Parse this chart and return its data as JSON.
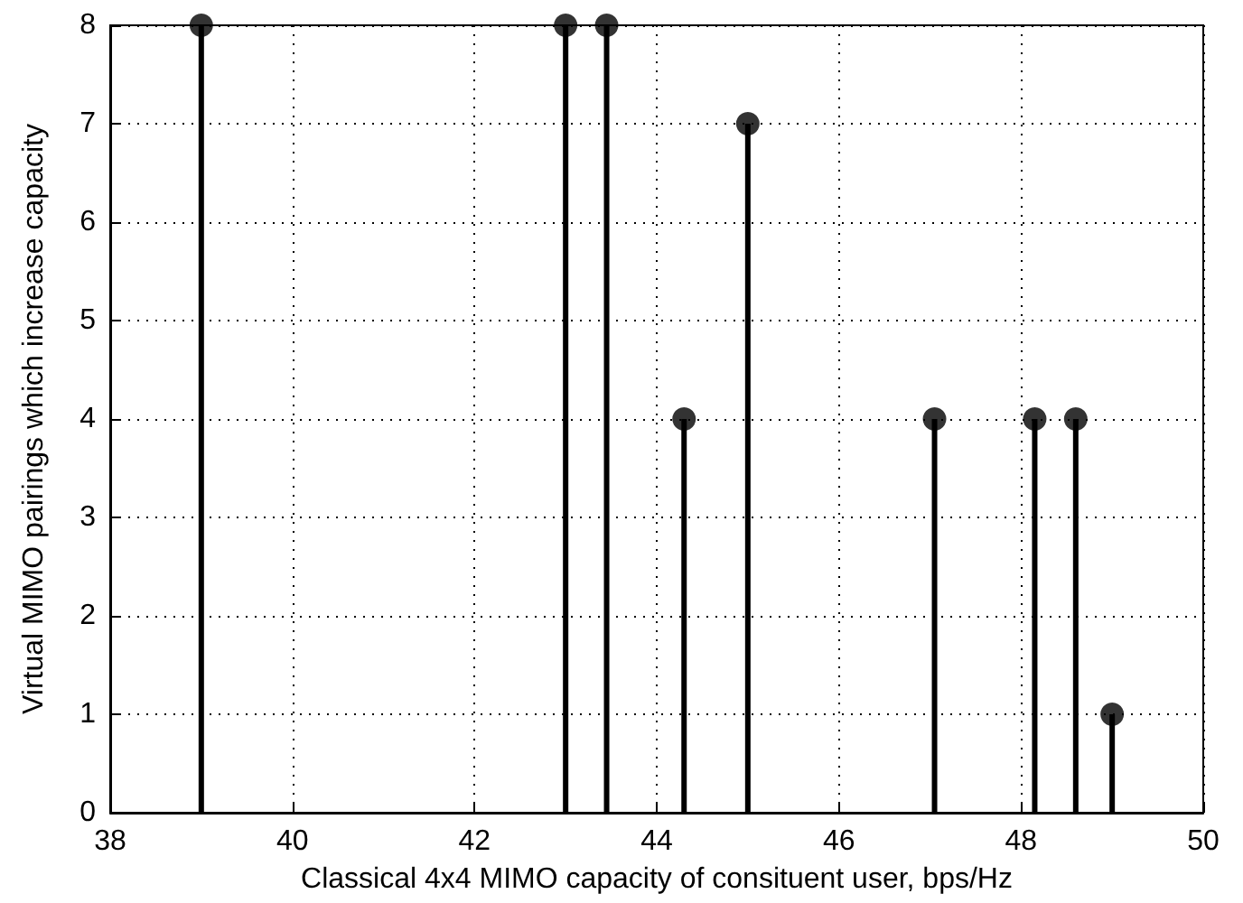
{
  "chart_data": {
    "type": "lollipop",
    "xlabel": "Classical 4x4 MIMO capacity of consituent user, bps/Hz",
    "ylabel": "Virtual MIMO pairings which increase capacity",
    "x": [
      39.0,
      43.0,
      43.45,
      44.3,
      45.0,
      47.05,
      48.15,
      48.6,
      49.0
    ],
    "values": [
      8,
      8,
      8,
      4,
      7,
      4,
      4,
      4,
      1
    ],
    "color": "#000000",
    "xlim": [
      38,
      50
    ],
    "xticks": [
      38,
      40,
      42,
      44,
      46,
      48,
      50
    ],
    "ylim": [
      0,
      8
    ],
    "yticks": [
      0,
      1,
      2,
      3,
      4,
      5,
      6,
      7,
      8
    ],
    "grid": true,
    "marker": "circle"
  }
}
